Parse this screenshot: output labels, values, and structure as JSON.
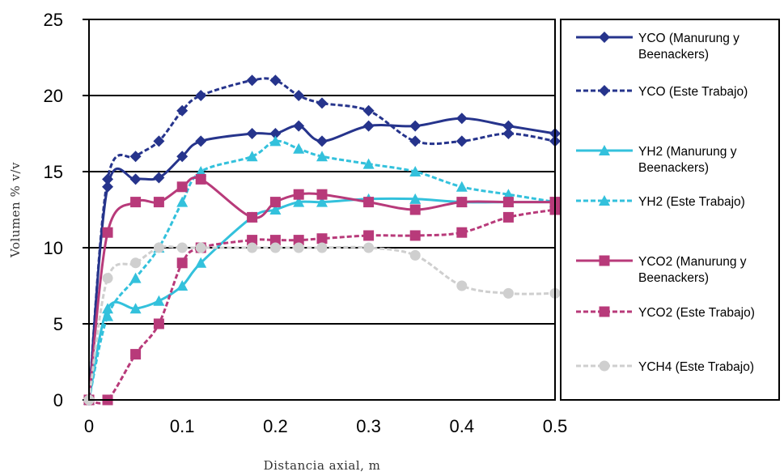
{
  "chart_data": {
    "type": "line",
    "xlabel": "Distancia axial, m",
    "ylabel": "Volumen % v/v",
    "xlim": [
      0,
      0.5
    ],
    "ylim": [
      0,
      25
    ],
    "x_ticks": [
      "0",
      "0.1",
      "0.2",
      "0.3",
      "0.4",
      "0.5"
    ],
    "y_ticks": [
      "0",
      "5",
      "10",
      "15",
      "20",
      "25"
    ],
    "grid": "horizontal",
    "legend": "right",
    "series": [
      {
        "name": "YCO (Manurung y Beenackers)",
        "color": "#26348c",
        "dash": "solid",
        "marker": "diamond",
        "x": [
          0,
          0.02,
          0.05,
          0.075,
          0.1,
          0.12,
          0.175,
          0.2,
          0.225,
          0.25,
          0.3,
          0.35,
          0.4,
          0.45,
          0.5
        ],
        "y": [
          0,
          14,
          14.5,
          14.6,
          16,
          17,
          17.5,
          17.5,
          18,
          17,
          18,
          18,
          18.5,
          18,
          17.5
        ]
      },
      {
        "name": "YCO (Este Trabajo)",
        "color": "#26348c",
        "dash": "dashed",
        "marker": "diamond",
        "x": [
          0,
          0.02,
          0.05,
          0.075,
          0.1,
          0.12,
          0.175,
          0.2,
          0.225,
          0.25,
          0.3,
          0.35,
          0.4,
          0.45,
          0.5
        ],
        "y": [
          0,
          14.5,
          16,
          17,
          19,
          20,
          21,
          21,
          20,
          19.5,
          19,
          17,
          17,
          17.5,
          17
        ]
      },
      {
        "name": "YH2 (Manurung y Beenackers)",
        "color": "#33c1dc",
        "dash": "solid",
        "marker": "triangle",
        "x": [
          0,
          0.02,
          0.05,
          0.075,
          0.1,
          0.12,
          0.175,
          0.2,
          0.225,
          0.25,
          0.3,
          0.35,
          0.4,
          0.45,
          0.5
        ],
        "y": [
          0,
          6,
          6,
          6.5,
          7.5,
          9,
          12,
          12.5,
          13,
          13,
          13.2,
          13.2,
          13,
          13,
          13
        ]
      },
      {
        "name": "YH2 (Este Trabajo)",
        "color": "#33c1dc",
        "dash": "dashed",
        "marker": "triangle",
        "x": [
          0,
          0.02,
          0.05,
          0.075,
          0.1,
          0.12,
          0.175,
          0.2,
          0.225,
          0.25,
          0.3,
          0.35,
          0.4,
          0.45,
          0.5
        ],
        "y": [
          0,
          5.5,
          8,
          10,
          13,
          15,
          16,
          17,
          16.5,
          16,
          15.5,
          15,
          14,
          13.5,
          13
        ]
      },
      {
        "name": "YCO2 (Manurung y Beenackers)",
        "color": "#b83a7a",
        "dash": "solid",
        "marker": "square",
        "x": [
          0,
          0.02,
          0.05,
          0.075,
          0.1,
          0.12,
          0.175,
          0.2,
          0.225,
          0.25,
          0.3,
          0.35,
          0.4,
          0.45,
          0.5
        ],
        "y": [
          0,
          11,
          13,
          13,
          14,
          14.5,
          12,
          13,
          13.5,
          13.5,
          13,
          12.5,
          13,
          13,
          13
        ]
      },
      {
        "name": "YCO2 (Este Trabajo)",
        "color": "#b83a7a",
        "dash": "dashed",
        "marker": "square",
        "x": [
          0,
          0.02,
          0.05,
          0.075,
          0.1,
          0.12,
          0.175,
          0.2,
          0.225,
          0.25,
          0.3,
          0.35,
          0.4,
          0.45,
          0.5
        ],
        "y": [
          0,
          0,
          3,
          5,
          9,
          10,
          10.5,
          10.5,
          10.5,
          10.6,
          10.8,
          10.8,
          11,
          12,
          12.5
        ]
      },
      {
        "name": "YCH4 (Este Trabajo)",
        "color": "#cfcfcf",
        "dash": "dashed",
        "marker": "circle",
        "x": [
          0,
          0.02,
          0.05,
          0.075,
          0.1,
          0.12,
          0.175,
          0.2,
          0.225,
          0.25,
          0.3,
          0.35,
          0.4,
          0.45,
          0.5
        ],
        "y": [
          0,
          8,
          9,
          10,
          10,
          10,
          10,
          10,
          10,
          10,
          10,
          9.5,
          7.5,
          7,
          7
        ]
      }
    ],
    "legend_lines": [
      [
        "YCO (Manurung y",
        "Beenackers)"
      ],
      [
        "YCO (Este Trabajo)"
      ],
      [
        "YH2 (Manurung y",
        "Beenackers)"
      ],
      [
        "YH2 (Este Trabajo)"
      ],
      [
        "YCO2 (Manurung y",
        "Beenackers)"
      ],
      [
        "YCO2 (Este Trabajo)"
      ],
      [
        "YCH4 (Este Trabajo)"
      ]
    ]
  }
}
